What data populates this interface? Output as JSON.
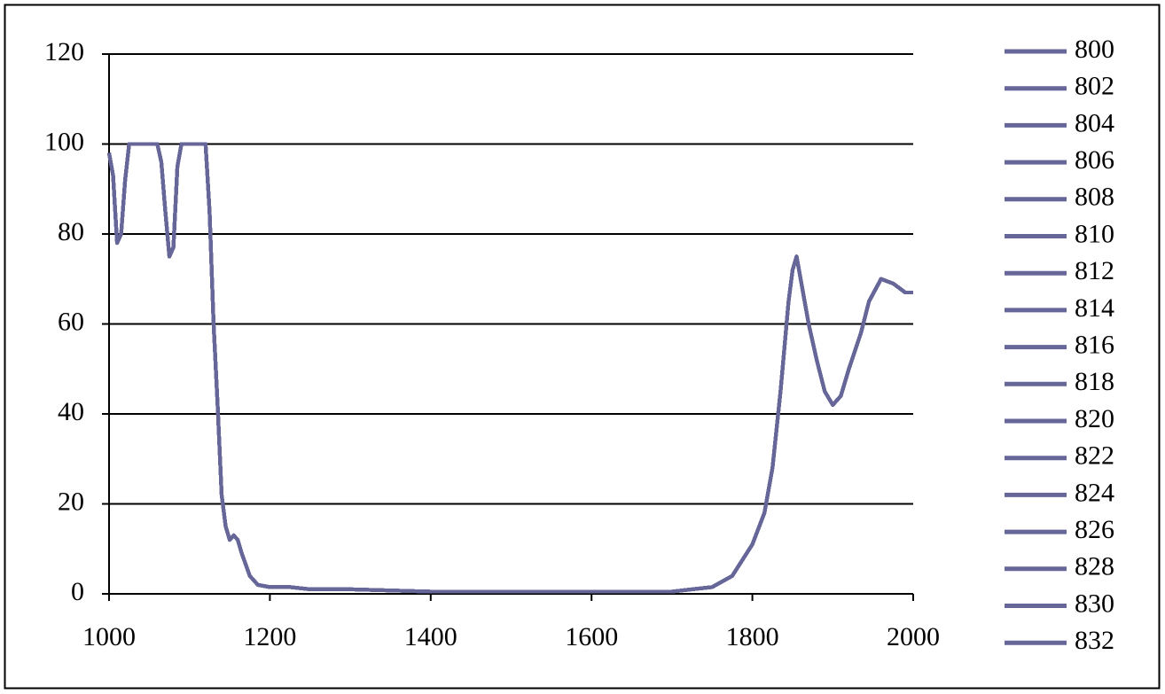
{
  "chart_data": {
    "type": "line",
    "x": [
      1000,
      1005,
      1010,
      1015,
      1020,
      1025,
      1060,
      1065,
      1070,
      1075,
      1080,
      1085,
      1090,
      1120,
      1125,
      1130,
      1135,
      1140,
      1145,
      1150,
      1155,
      1160,
      1165,
      1175,
      1185,
      1200,
      1225,
      1250,
      1300,
      1400,
      1500,
      1600,
      1700,
      1725,
      1750,
      1775,
      1800,
      1815,
      1825,
      1835,
      1845,
      1850,
      1855,
      1860,
      1870,
      1880,
      1890,
      1900,
      1910,
      1920,
      1935,
      1945,
      1960,
      1975,
      1990,
      2000
    ],
    "series": [
      {
        "name": "800",
        "color": "#666699",
        "values": [
          98,
          93,
          78,
          80,
          92,
          100,
          100,
          96,
          85,
          75,
          77,
          95,
          100,
          100,
          85,
          60,
          42,
          22,
          15,
          12,
          13,
          12,
          9,
          4,
          2,
          1.5,
          1.5,
          1,
          1,
          0.5,
          0.5,
          0.5,
          0.5,
          1,
          1.5,
          4,
          11,
          18,
          28,
          45,
          65,
          72,
          75,
          70,
          60,
          52,
          45,
          42,
          44,
          50,
          58,
          65,
          70,
          69,
          67,
          67
        ]
      },
      {
        "name": "802",
        "color": "#666699",
        "values": [
          98,
          93,
          78,
          80,
          92,
          100,
          100,
          96,
          85,
          75,
          77,
          95,
          100,
          100,
          85,
          60,
          42,
          22,
          15,
          12,
          13,
          12,
          9,
          4,
          2,
          1.5,
          1.5,
          1,
          1,
          0.5,
          0.5,
          0.5,
          0.5,
          1,
          1.5,
          4,
          11,
          18,
          28,
          45,
          65,
          72,
          75,
          70,
          60,
          52,
          45,
          42,
          44,
          50,
          58,
          65,
          70,
          69,
          67,
          67
        ]
      },
      {
        "name": "804",
        "color": "#666699",
        "values": [
          98,
          93,
          78,
          80,
          92,
          100,
          100,
          96,
          85,
          75,
          77,
          95,
          100,
          100,
          85,
          60,
          42,
          22,
          15,
          12,
          13,
          12,
          9,
          4,
          2,
          1.5,
          1.5,
          1,
          1,
          0.5,
          0.5,
          0.5,
          0.5,
          1,
          1.5,
          4,
          11,
          18,
          28,
          45,
          65,
          72,
          75,
          70,
          60,
          52,
          45,
          42,
          44,
          50,
          58,
          65,
          70,
          69,
          67,
          67
        ]
      },
      {
        "name": "806",
        "color": "#666699",
        "values": [
          98,
          93,
          78,
          80,
          92,
          100,
          100,
          96,
          85,
          75,
          77,
          95,
          100,
          100,
          85,
          60,
          42,
          22,
          15,
          12,
          13,
          12,
          9,
          4,
          2,
          1.5,
          1.5,
          1,
          1,
          0.5,
          0.5,
          0.5,
          0.5,
          1,
          1.5,
          4,
          11,
          18,
          28,
          45,
          65,
          72,
          75,
          70,
          60,
          52,
          45,
          42,
          44,
          50,
          58,
          65,
          70,
          69,
          67,
          67
        ]
      },
      {
        "name": "808",
        "color": "#666699",
        "values": [
          98,
          93,
          78,
          80,
          92,
          100,
          100,
          96,
          85,
          75,
          77,
          95,
          100,
          100,
          85,
          60,
          42,
          22,
          15,
          12,
          13,
          12,
          9,
          4,
          2,
          1.5,
          1.5,
          1,
          1,
          0.5,
          0.5,
          0.5,
          0.5,
          1,
          1.5,
          4,
          11,
          18,
          28,
          45,
          65,
          72,
          75,
          70,
          60,
          52,
          45,
          42,
          44,
          50,
          58,
          65,
          70,
          69,
          67,
          67
        ]
      },
      {
        "name": "810",
        "color": "#666699",
        "values": [
          98,
          93,
          78,
          80,
          92,
          100,
          100,
          96,
          85,
          75,
          77,
          95,
          100,
          100,
          85,
          60,
          42,
          22,
          15,
          12,
          13,
          12,
          9,
          4,
          2,
          1.5,
          1.5,
          1,
          1,
          0.5,
          0.5,
          0.5,
          0.5,
          1,
          1.5,
          4,
          11,
          18,
          28,
          45,
          65,
          72,
          75,
          70,
          60,
          52,
          45,
          42,
          44,
          50,
          58,
          65,
          70,
          69,
          67,
          67
        ]
      },
      {
        "name": "812",
        "color": "#666699",
        "values": [
          98,
          93,
          78,
          80,
          92,
          100,
          100,
          96,
          85,
          75,
          77,
          95,
          100,
          100,
          85,
          60,
          42,
          22,
          15,
          12,
          13,
          12,
          9,
          4,
          2,
          1.5,
          1.5,
          1,
          1,
          0.5,
          0.5,
          0.5,
          0.5,
          1,
          1.5,
          4,
          11,
          18,
          28,
          45,
          65,
          72,
          75,
          70,
          60,
          52,
          45,
          42,
          44,
          50,
          58,
          65,
          70,
          69,
          67,
          67
        ]
      },
      {
        "name": "814",
        "color": "#666699",
        "values": [
          98,
          93,
          78,
          80,
          92,
          100,
          100,
          96,
          85,
          75,
          77,
          95,
          100,
          100,
          85,
          60,
          42,
          22,
          15,
          12,
          13,
          12,
          9,
          4,
          2,
          1.5,
          1.5,
          1,
          1,
          0.5,
          0.5,
          0.5,
          0.5,
          1,
          1.5,
          4,
          11,
          18,
          28,
          45,
          65,
          72,
          75,
          70,
          60,
          52,
          45,
          42,
          44,
          50,
          58,
          65,
          70,
          69,
          67,
          67
        ]
      },
      {
        "name": "816",
        "color": "#666699",
        "values": [
          98,
          93,
          78,
          80,
          92,
          100,
          100,
          96,
          85,
          75,
          77,
          95,
          100,
          100,
          85,
          60,
          42,
          22,
          15,
          12,
          13,
          12,
          9,
          4,
          2,
          1.5,
          1.5,
          1,
          1,
          0.5,
          0.5,
          0.5,
          0.5,
          1,
          1.5,
          4,
          11,
          18,
          28,
          45,
          65,
          72,
          75,
          70,
          60,
          52,
          45,
          42,
          44,
          50,
          58,
          65,
          70,
          69,
          67,
          67
        ]
      },
      {
        "name": "818",
        "color": "#666699",
        "values": [
          98,
          93,
          78,
          80,
          92,
          100,
          100,
          96,
          85,
          75,
          77,
          95,
          100,
          100,
          85,
          60,
          42,
          22,
          15,
          12,
          13,
          12,
          9,
          4,
          2,
          1.5,
          1.5,
          1,
          1,
          0.5,
          0.5,
          0.5,
          0.5,
          1,
          1.5,
          4,
          11,
          18,
          28,
          45,
          65,
          72,
          75,
          70,
          60,
          52,
          45,
          42,
          44,
          50,
          58,
          65,
          70,
          69,
          67,
          67
        ]
      },
      {
        "name": "820",
        "color": "#666699",
        "values": [
          98,
          93,
          78,
          80,
          92,
          100,
          100,
          96,
          85,
          75,
          77,
          95,
          100,
          100,
          85,
          60,
          42,
          22,
          15,
          12,
          13,
          12,
          9,
          4,
          2,
          1.5,
          1.5,
          1,
          1,
          0.5,
          0.5,
          0.5,
          0.5,
          1,
          1.5,
          4,
          11,
          18,
          28,
          45,
          65,
          72,
          75,
          70,
          60,
          52,
          45,
          42,
          44,
          50,
          58,
          65,
          70,
          69,
          67,
          67
        ]
      },
      {
        "name": "822",
        "color": "#666699",
        "values": [
          98,
          93,
          78,
          80,
          92,
          100,
          100,
          96,
          85,
          75,
          77,
          95,
          100,
          100,
          85,
          60,
          42,
          22,
          15,
          12,
          13,
          12,
          9,
          4,
          2,
          1.5,
          1.5,
          1,
          1,
          0.5,
          0.5,
          0.5,
          0.5,
          1,
          1.5,
          4,
          11,
          18,
          28,
          45,
          65,
          72,
          75,
          70,
          60,
          52,
          45,
          42,
          44,
          50,
          58,
          65,
          70,
          69,
          67,
          67
        ]
      },
      {
        "name": "824",
        "color": "#666699",
        "values": [
          98,
          93,
          78,
          80,
          92,
          100,
          100,
          96,
          85,
          75,
          77,
          95,
          100,
          100,
          85,
          60,
          42,
          22,
          15,
          12,
          13,
          12,
          9,
          4,
          2,
          1.5,
          1.5,
          1,
          1,
          0.5,
          0.5,
          0.5,
          0.5,
          1,
          1.5,
          4,
          11,
          18,
          28,
          45,
          65,
          72,
          75,
          70,
          60,
          52,
          45,
          42,
          44,
          50,
          58,
          65,
          70,
          69,
          67,
          67
        ]
      },
      {
        "name": "826",
        "color": "#666699",
        "values": [
          98,
          93,
          78,
          80,
          92,
          100,
          100,
          96,
          85,
          75,
          77,
          95,
          100,
          100,
          85,
          60,
          42,
          22,
          15,
          12,
          13,
          12,
          9,
          4,
          2,
          1.5,
          1.5,
          1,
          1,
          0.5,
          0.5,
          0.5,
          0.5,
          1,
          1.5,
          4,
          11,
          18,
          28,
          45,
          65,
          72,
          75,
          70,
          60,
          52,
          45,
          42,
          44,
          50,
          58,
          65,
          70,
          69,
          67,
          67
        ]
      },
      {
        "name": "828",
        "color": "#666699",
        "values": [
          98,
          93,
          78,
          80,
          92,
          100,
          100,
          96,
          85,
          75,
          77,
          95,
          100,
          100,
          85,
          60,
          42,
          22,
          15,
          12,
          13,
          12,
          9,
          4,
          2,
          1.5,
          1.5,
          1,
          1,
          0.5,
          0.5,
          0.5,
          0.5,
          1,
          1.5,
          4,
          11,
          18,
          28,
          45,
          65,
          72,
          75,
          70,
          60,
          52,
          45,
          42,
          44,
          50,
          58,
          65,
          70,
          69,
          67,
          67
        ]
      },
      {
        "name": "830",
        "color": "#666699",
        "values": [
          98,
          93,
          78,
          80,
          92,
          100,
          100,
          96,
          85,
          75,
          77,
          95,
          100,
          100,
          85,
          60,
          42,
          22,
          15,
          12,
          13,
          12,
          9,
          4,
          2,
          1.5,
          1.5,
          1,
          1,
          0.5,
          0.5,
          0.5,
          0.5,
          1,
          1.5,
          4,
          11,
          18,
          28,
          45,
          65,
          72,
          75,
          70,
          60,
          52,
          45,
          42,
          44,
          50,
          58,
          65,
          70,
          69,
          67,
          67
        ]
      },
      {
        "name": "832",
        "color": "#666699",
        "values": [
          98,
          93,
          78,
          80,
          92,
          100,
          100,
          96,
          85,
          75,
          77,
          95,
          100,
          100,
          85,
          60,
          42,
          22,
          15,
          12,
          13,
          12,
          9,
          4,
          2,
          1.5,
          1.5,
          1,
          1,
          0.5,
          0.5,
          0.5,
          0.5,
          1,
          1.5,
          4,
          11,
          18,
          28,
          45,
          65,
          72,
          75,
          70,
          60,
          52,
          45,
          42,
          44,
          50,
          58,
          65,
          70,
          69,
          67,
          67
        ]
      }
    ],
    "xlim": [
      1000,
      2000
    ],
    "xticks": [
      1000,
      1200,
      1400,
      1600,
      1800,
      2000
    ],
    "ylim": [
      0,
      120
    ],
    "yticks": [
      0,
      20,
      40,
      60,
      80,
      100,
      120
    ],
    "grid": true,
    "legend": "right"
  }
}
